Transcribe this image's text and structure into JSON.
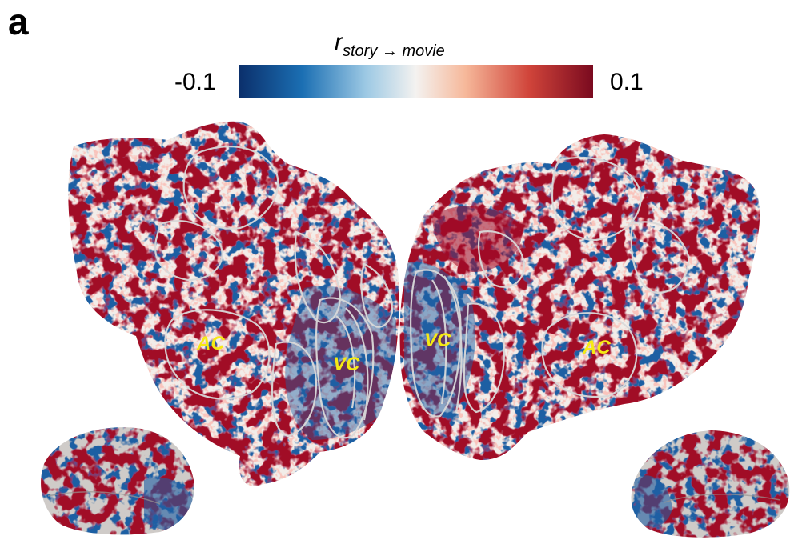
{
  "panel_label": "a",
  "colorbar": {
    "title_main": "r",
    "title_sub": "story → movie",
    "tick_min": "-0.1",
    "tick_max": "0.1",
    "colormap": [
      "#0b2f6b",
      "#1b6fb3",
      "#9dc9e4",
      "#f4f2f0",
      "#f6b89a",
      "#d0443a",
      "#7a0a1f"
    ]
  },
  "regions": {
    "left_auditory": "AC",
    "left_visual": "VC",
    "right_visual": "VC",
    "right_auditory": "AC"
  },
  "colors": {
    "positive": "#a10a28",
    "negative": "#1f5fa3",
    "neutral": "#f2ede9",
    "outline": "#d9d9d9",
    "label": "#f5ea14"
  }
}
